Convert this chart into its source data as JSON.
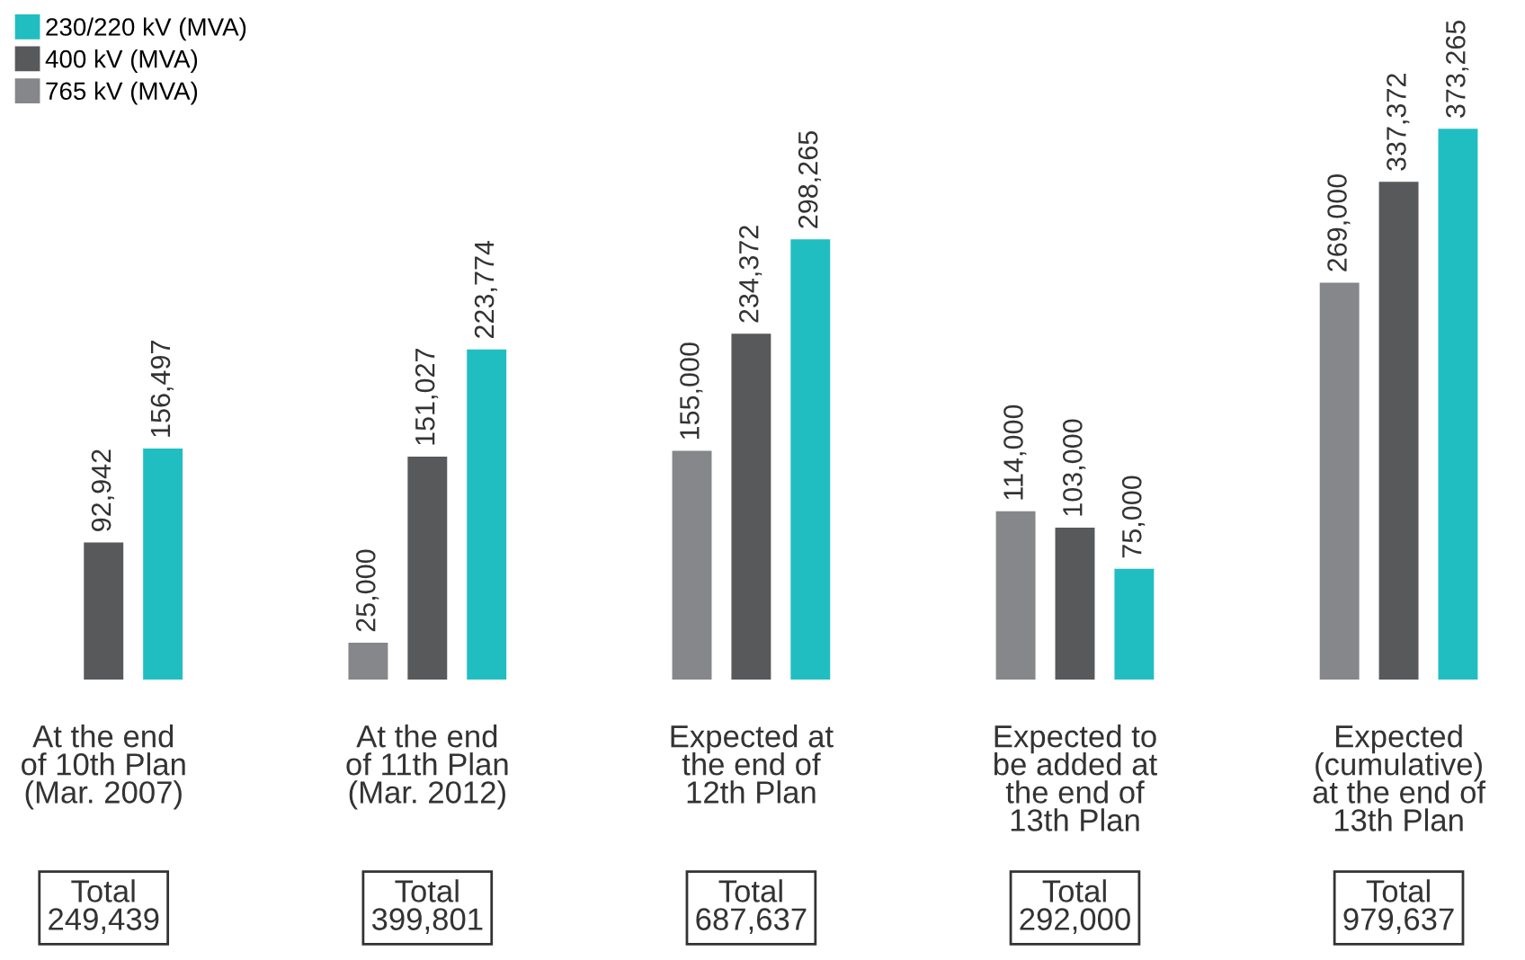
{
  "chart_data": {
    "type": "bar",
    "categories": [
      "At the end\nof 10th Plan\n(Mar. 2007)",
      "At the end\nof 11th Plan\n(Mar. 2012)",
      "Expected at\nthe end of\n12th Plan",
      "Expected to\nbe added at\nthe end of\n13th Plan",
      "Expected\n(cumulative)\nat the end of\n13th Plan"
    ],
    "series": [
      {
        "name": "765 kV (MVA)",
        "color": "#86878a",
        "values": [
          null,
          25000,
          155000,
          114000,
          269000
        ],
        "value_labels": [
          null,
          "25,000",
          "155,000",
          "114,000",
          "269,000"
        ]
      },
      {
        "name": "400 kV (MVA)",
        "color": "#58595b",
        "values": [
          92942,
          151027,
          234372,
          103000,
          337372
        ],
        "value_labels": [
          "92,942",
          "151,027",
          "234,372",
          "103,000",
          "337,372"
        ]
      },
      {
        "name": "230/220 kV (MVA)",
        "color": "#21bec1",
        "values": [
          156497,
          223774,
          298265,
          75000,
          373265
        ],
        "value_labels": [
          "156,497",
          "223,774",
          "298,265",
          "75,000",
          "373,265"
        ]
      }
    ],
    "annotations": [
      "Total\n249,439",
      "Total\n399,801",
      "Total\n687,637",
      "Total\n292,000",
      "Total\n979,637"
    ],
    "legend": "top left",
    "tick_labels": "x",
    "grid": false
  }
}
